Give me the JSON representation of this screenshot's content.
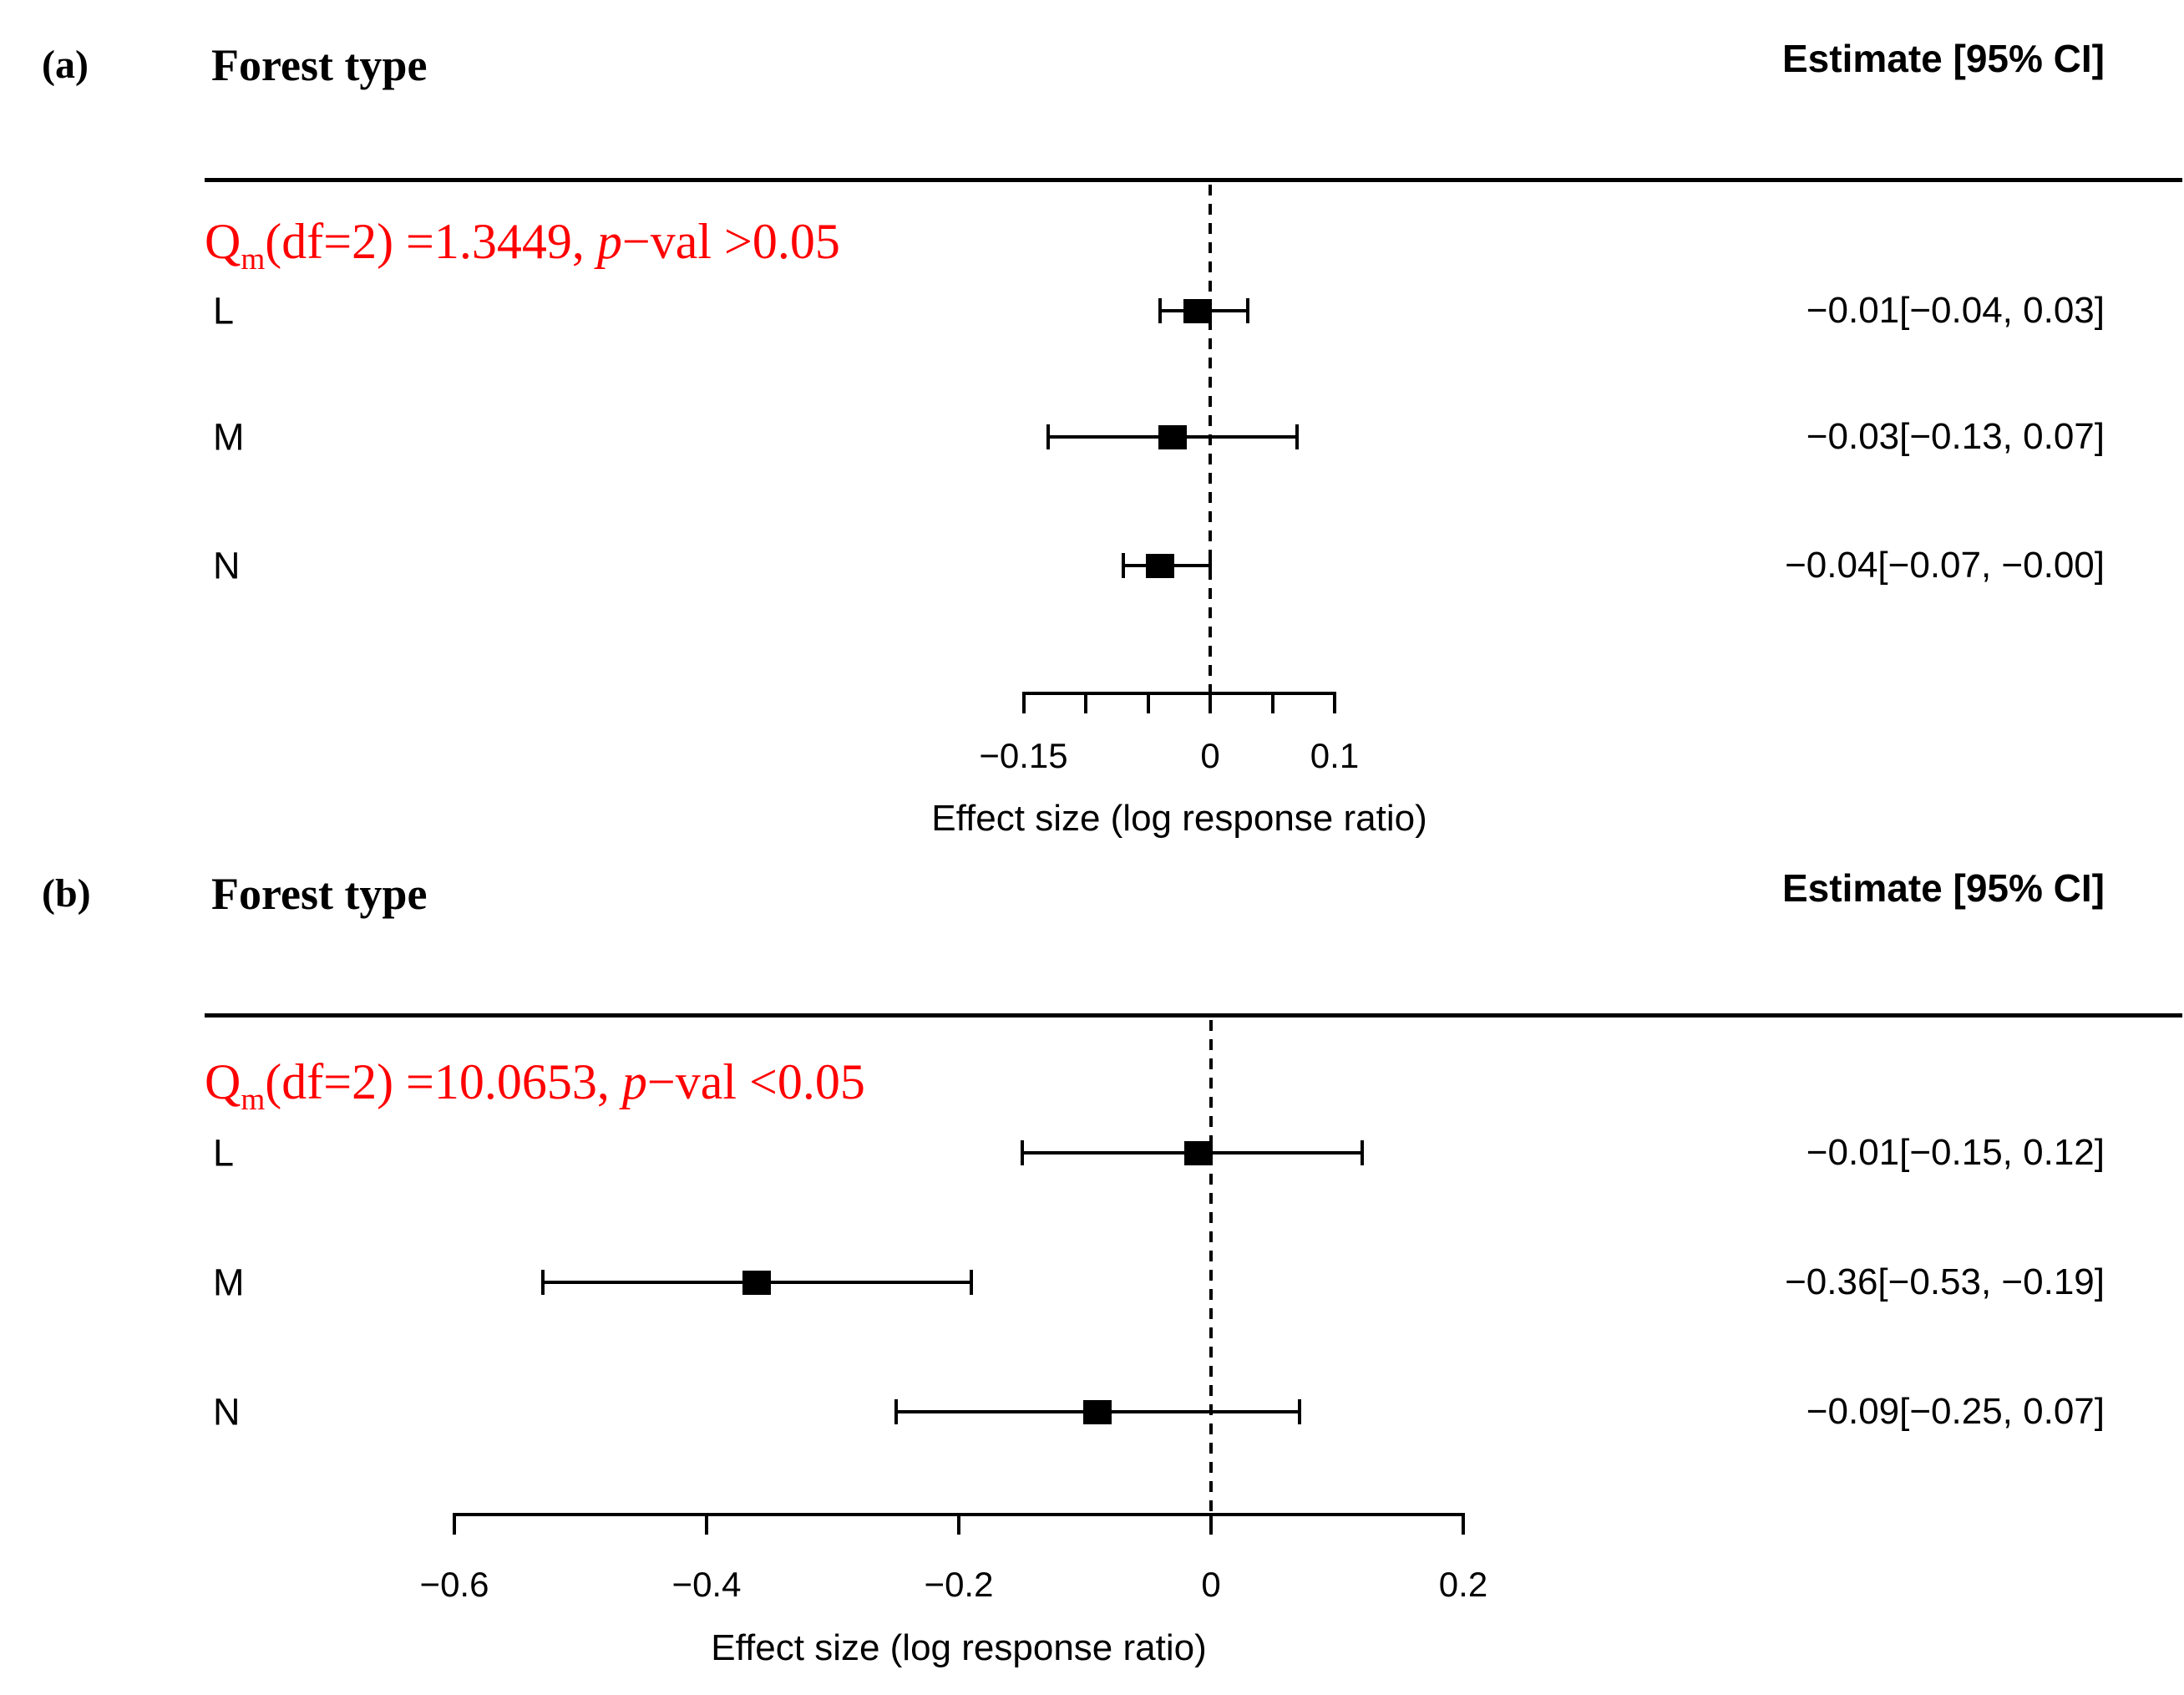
{
  "figure": {
    "background": "#ffffff",
    "text_color": "#000000",
    "accent_red": "#ff0000"
  },
  "panels": [
    {
      "tag": "(a)",
      "forest_type_header": "Forest type",
      "estimate_header": "Estimate [95% CI]",
      "qm_parts": {
        "base": "Q",
        "sub": "m",
        "mid": "(df=2) =1.3449, ",
        "p": "p",
        "tail": "−val >0.05"
      },
      "xlabel": "Effect size (log response ratio)",
      "rows": [
        {
          "label": "L",
          "estimate": -0.01,
          "ci_low": -0.04,
          "ci_high": 0.03,
          "estimate_text": "−0.01[−0.04, 0.03]"
        },
        {
          "label": "M",
          "estimate": -0.03,
          "ci_low": -0.13,
          "ci_high": 0.07,
          "estimate_text": "−0.03[−0.13, 0.07]"
        },
        {
          "label": "N",
          "estimate": -0.04,
          "ci_low": -0.07,
          "ci_high": 0.0,
          "estimate_text": "−0.04[−0.07, −0.00]"
        }
      ],
      "axis": {
        "xlim": [
          -0.15,
          0.1
        ],
        "ticks": [
          -0.15,
          -0.1,
          -0.05,
          0,
          0.05,
          0.1
        ],
        "labeled_ticks": [
          {
            "value": -0.15,
            "label": "−0.15"
          },
          {
            "value": 0,
            "label": "0"
          },
          {
            "value": 0.1,
            "label": "0.1"
          }
        ]
      }
    },
    {
      "tag": "(b)",
      "forest_type_header": "Forest type",
      "estimate_header": "Estimate [95% CI]",
      "qm_parts": {
        "base": "Q",
        "sub": "m",
        "mid": "(df=2) =10.0653, ",
        "p": "p",
        "tail": "−val <0.05"
      },
      "xlabel": "Effect size (log response ratio)",
      "rows": [
        {
          "label": "L",
          "estimate": -0.01,
          "ci_low": -0.15,
          "ci_high": 0.12,
          "estimate_text": "−0.01[−0.15, 0.12]"
        },
        {
          "label": "M",
          "estimate": -0.36,
          "ci_low": -0.53,
          "ci_high": -0.19,
          "estimate_text": "−0.36[−0.53, −0.19]"
        },
        {
          "label": "N",
          "estimate": -0.09,
          "ci_low": -0.25,
          "ci_high": 0.07,
          "estimate_text": "−0.09[−0.25, 0.07]"
        }
      ],
      "axis": {
        "xlim": [
          -0.6,
          0.2
        ],
        "ticks": [
          -0.6,
          -0.4,
          -0.2,
          0,
          0.2
        ],
        "labeled_ticks": [
          {
            "value": -0.6,
            "label": "−0.6"
          },
          {
            "value": -0.4,
            "label": "−0.4"
          },
          {
            "value": -0.2,
            "label": "−0.2"
          },
          {
            "value": 0,
            "label": "0"
          },
          {
            "value": 0.2,
            "label": "0.2"
          }
        ]
      }
    }
  ],
  "chart_data": [
    {
      "type": "forest",
      "panel_label": "(a)",
      "title": "Forest type",
      "subgroup_test_annotation": "Qm(df=2) = 1.3449, p-val > 0.05",
      "estimate_column_header": "Estimate [95% CI]",
      "categories": [
        "L",
        "M",
        "N"
      ],
      "series": [
        {
          "name": "estimate",
          "values": [
            -0.01,
            -0.03,
            -0.04
          ]
        },
        {
          "name": "ci_lower",
          "values": [
            -0.04,
            -0.13,
            -0.07
          ]
        },
        {
          "name": "ci_upper",
          "values": [
            0.03,
            0.07,
            -0.0
          ]
        }
      ],
      "estimate_labels": [
        "−0.01[−0.04, 0.03]",
        "−0.03[−0.13, 0.07]",
        "−0.04[−0.07, −0.00]"
      ],
      "xlabel": "Effect size (log response ratio)",
      "xlim": [
        -0.15,
        0.1
      ],
      "x_ticks": [
        -0.15,
        -0.1,
        -0.05,
        0,
        0.05,
        0.1
      ],
      "x_tick_labels_shown": [
        "−0.15",
        "0",
        "0.1"
      ],
      "zero_reference_line": true,
      "grid": false
    },
    {
      "type": "forest",
      "panel_label": "(b)",
      "title": "Forest type",
      "subgroup_test_annotation": "Qm(df=2) = 10.0653, p-val < 0.05",
      "estimate_column_header": "Estimate [95% CI]",
      "categories": [
        "L",
        "M",
        "N"
      ],
      "series": [
        {
          "name": "estimate",
          "values": [
            -0.01,
            -0.36,
            -0.09
          ]
        },
        {
          "name": "ci_lower",
          "values": [
            -0.15,
            -0.53,
            -0.25
          ]
        },
        {
          "name": "ci_upper",
          "values": [
            0.12,
            -0.19,
            0.07
          ]
        }
      ],
      "estimate_labels": [
        "−0.01[−0.15, 0.12]",
        "−0.36[−0.53, −0.19]",
        "−0.09[−0.25, 0.07]"
      ],
      "xlabel": "Effect size (log response ratio)",
      "xlim": [
        -0.6,
        0.2
      ],
      "x_ticks": [
        -0.6,
        -0.4,
        -0.2,
        0,
        0.2
      ],
      "x_tick_labels_shown": [
        "−0.6",
        "−0.4",
        "−0.2",
        "0",
        "0.2"
      ],
      "zero_reference_line": true,
      "grid": false
    }
  ]
}
